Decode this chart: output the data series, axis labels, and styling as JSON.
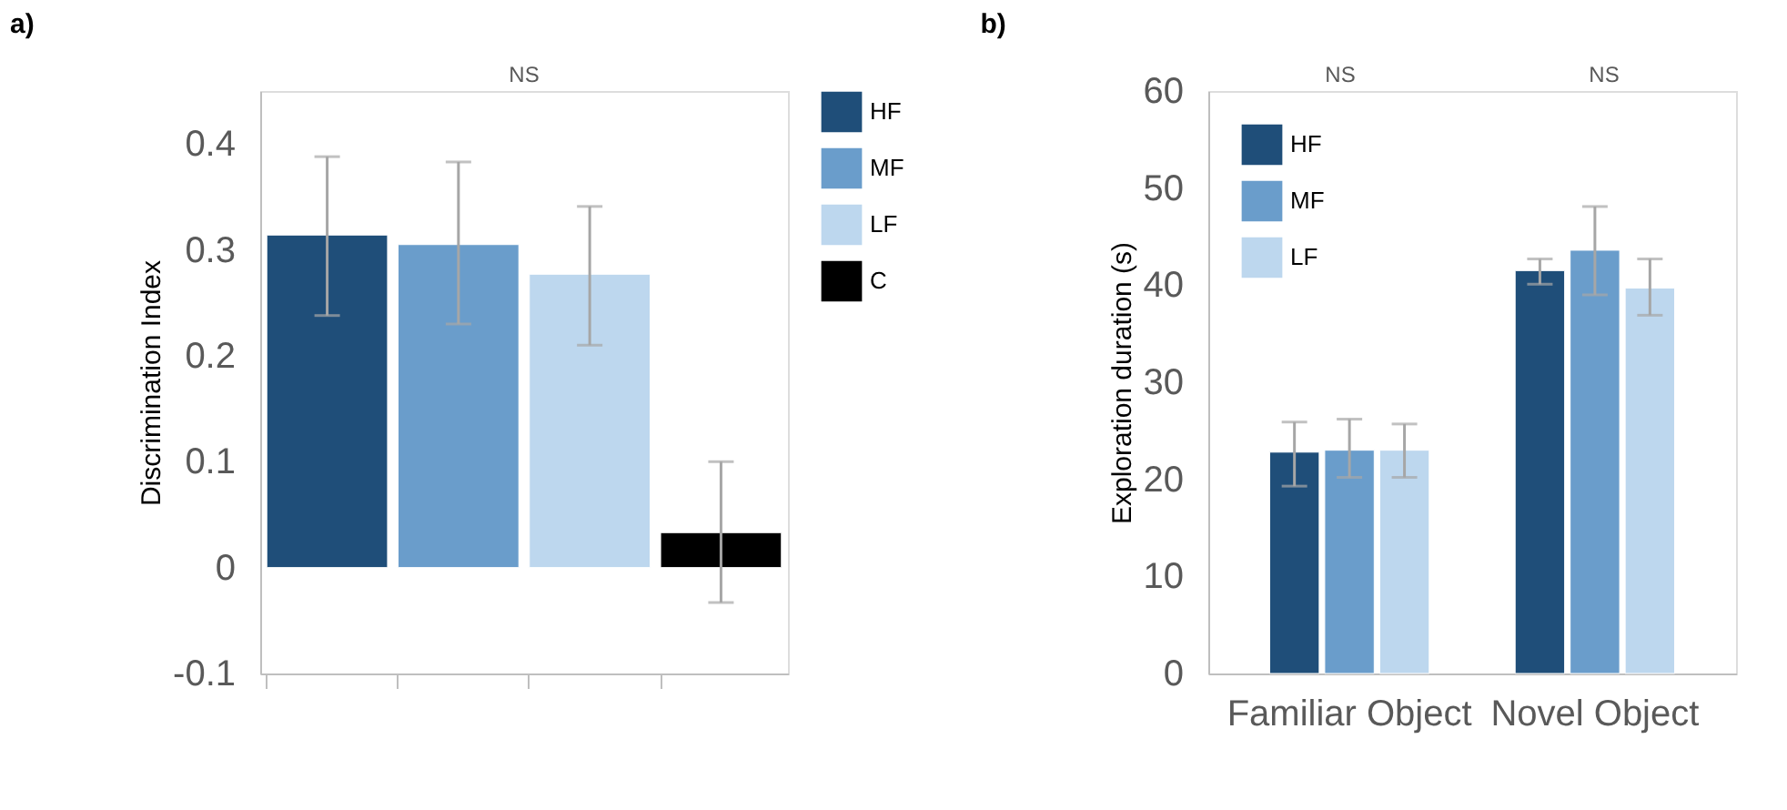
{
  "chart_data": [
    {
      "type": "bar",
      "title": "a)",
      "ylabel": "Discrimination Index",
      "categories": [
        null,
        null,
        null,
        null
      ],
      "series": [
        {
          "name": "HF",
          "color": "#1f4e79",
          "values": [
            0.314,
            null,
            null,
            null
          ],
          "errors": [
            [
              0.238,
              0.388
            ],
            null,
            null,
            null
          ]
        },
        {
          "name": "MF",
          "color": "#6a9dcb",
          "values": [
            null,
            0.305,
            null,
            null
          ],
          "errors": [
            null,
            [
              0.23,
              0.383
            ],
            null,
            null
          ]
        },
        {
          "name": "LF",
          "color": "#bdd7ee",
          "values": [
            null,
            null,
            0.277,
            null
          ],
          "errors": [
            null,
            null,
            [
              0.21,
              0.341
            ],
            null
          ]
        },
        {
          "name": "C",
          "color": "#000000",
          "values": [
            null,
            null,
            null,
            0.033
          ],
          "errors": [
            null,
            null,
            null,
            [
              -0.033,
              0.1
            ]
          ]
        }
      ],
      "ylim": [
        -0.1,
        0.45
      ],
      "yticks": [
        -0.1,
        0,
        0.1,
        0.2,
        0.3,
        0.4
      ],
      "grid": false,
      "legend": "top right",
      "annotations": [
        "NS"
      ]
    },
    {
      "type": "bar",
      "title": "b)",
      "ylabel": "Exploration duration (s)",
      "categories": [
        "Familiar Object",
        "Novel Object"
      ],
      "series": [
        {
          "name": "HF",
          "color": "#1f4e79",
          "values": [
            22.8,
            41.5
          ],
          "errors": [
            [
              19.3,
              25.9
            ],
            [
              40.1,
              42.7
            ]
          ]
        },
        {
          "name": "MF",
          "color": "#6a9dcb",
          "values": [
            23.0,
            43.6
          ],
          "errors": [
            [
              20.2,
              26.2
            ],
            [
              39.0,
              48.1
            ]
          ]
        },
        {
          "name": "LF",
          "color": "#bdd7ee",
          "values": [
            23.0,
            39.7
          ],
          "errors": [
            [
              20.2,
              25.7
            ],
            [
              36.9,
              42.7
            ]
          ]
        }
      ],
      "ylim": [
        0,
        60
      ],
      "yticks": [
        0,
        10,
        20,
        30,
        40,
        50,
        60
      ],
      "grid": false,
      "legend": "top left",
      "annotations": [
        "NS",
        "NS"
      ]
    }
  ]
}
